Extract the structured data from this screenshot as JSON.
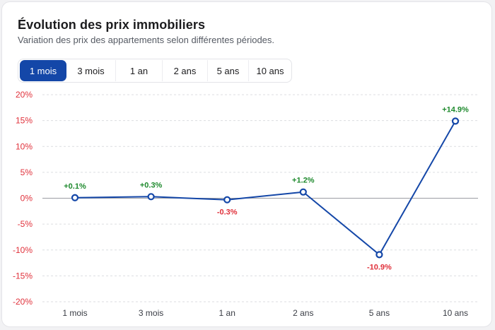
{
  "header": {
    "title": "Évolution des prix immobiliers",
    "subtitle": "Variation des prix des appartements selon différentes périodes."
  },
  "tabs": [
    {
      "label": "1 mois",
      "active": true
    },
    {
      "label": "3 mois",
      "active": false
    },
    {
      "label": "1 an",
      "active": false
    },
    {
      "label": "2 ans",
      "active": false
    },
    {
      "label": "5 ans",
      "active": false
    },
    {
      "label": "10 ans",
      "active": false
    }
  ],
  "colors": {
    "line": "#1447a8",
    "positive": "#1f8a2e",
    "negative": "#e0313b",
    "active_tab": "#1447a8"
  },
  "chart_data": {
    "type": "line",
    "title": "Évolution des prix immobiliers",
    "subtitle": "Variation des prix des appartements selon différentes périodes.",
    "categories": [
      "1 mois",
      "3 mois",
      "1 an",
      "2 ans",
      "5 ans",
      "10 ans"
    ],
    "series": [
      {
        "values": [
          0.1,
          0.3,
          -0.3,
          1.2,
          -10.9,
          14.9
        ],
        "data_labels": [
          "+0.1%",
          "+0.3%",
          "-0.3%",
          "+1.2%",
          "-10.9%",
          "+14.9%"
        ]
      }
    ],
    "ylim": [
      -20,
      20
    ],
    "yticks": [
      20,
      15,
      10,
      5,
      0,
      -5,
      -10,
      -15,
      -20
    ],
    "ytick_labels": [
      "20%",
      "15%",
      "10%",
      "5%",
      "0%",
      "-5%",
      "-10%",
      "-15%",
      "-20%"
    ],
    "grid": true,
    "legend": "none"
  }
}
